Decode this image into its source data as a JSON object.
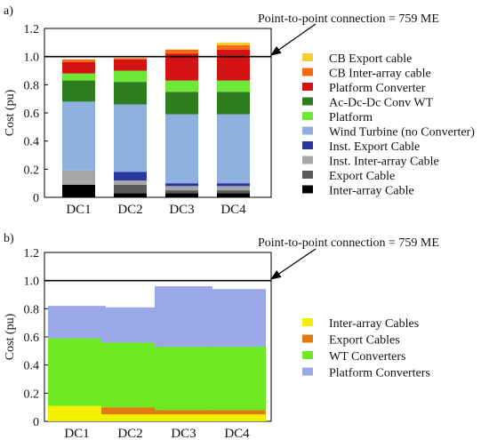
{
  "chart_data": [
    {
      "panel_label": "a)",
      "type": "bar",
      "stacked": true,
      "ylabel": "Cost (pu)",
      "ylim": [
        0,
        1.2
      ],
      "yticks": [
        "0",
        "0.2",
        "0.4",
        "0.6",
        "0.8",
        "1.0",
        "1.2"
      ],
      "categories": [
        "DC1",
        "DC2",
        "DC3",
        "DC4"
      ],
      "reference_line": {
        "value": 1.0,
        "label": "Point-to-point connection = 759 ME"
      },
      "legend_position": "right",
      "series": [
        {
          "name": "Inter-array Cable",
          "color": "#000000",
          "values": [
            0.09,
            0.03,
            0.03,
            0.03
          ]
        },
        {
          "name": "Export Cable",
          "color": "#5a5a5a",
          "values": [
            0.0,
            0.06,
            0.02,
            0.02
          ]
        },
        {
          "name": "Inst. Inter-array Cable",
          "color": "#a6a6a6",
          "values": [
            0.1,
            0.03,
            0.03,
            0.03
          ]
        },
        {
          "name": "Inst. Export Cable",
          "color": "#2b35a0",
          "values": [
            0.0,
            0.06,
            0.02,
            0.02
          ]
        },
        {
          "name": "Wind Turbine (no Converter)",
          "color": "#8fb0df",
          "values": [
            0.49,
            0.48,
            0.49,
            0.49
          ]
        },
        {
          "name": "Platform",
          "color": "#6ee838",
          "values": [
            0.0,
            0.0,
            0.0,
            0.0
          ]
        },
        {
          "name": "Ac-Dc-Dc Conv WT",
          "color": "#2e7d1e",
          "values": [
            0.15,
            0.16,
            0.16,
            0.16
          ]
        },
        {
          "name": "Platform",
          "color": "#6ee838",
          "values": [
            0.05,
            0.08,
            0.08,
            0.08
          ]
        },
        {
          "name": "Platform Converter",
          "color": "#d41414",
          "values": [
            0.08,
            0.08,
            0.19,
            0.22
          ]
        },
        {
          "name": "CB Inter-array cable",
          "color": "#f36a13",
          "values": [
            0.02,
            0.01,
            0.03,
            0.03
          ]
        },
        {
          "name": "CB Export cable",
          "color": "#f7cd33",
          "values": [
            0.0,
            0.0,
            0.0,
            0.02
          ]
        }
      ],
      "legend": [
        {
          "name": "CB Export cable",
          "color": "#f7cd33"
        },
        {
          "name": "CB Inter-array cable",
          "color": "#f36a13"
        },
        {
          "name": "Platform Converter",
          "color": "#d41414"
        },
        {
          "name": "Ac-Dc-Dc Conv WT",
          "color": "#2e7d1e"
        },
        {
          "name": "Platform",
          "color": "#6ee838"
        },
        {
          "name": "Wind Turbine (no Converter)",
          "color": "#8fb0df"
        },
        {
          "name": "Inst. Export Cable",
          "color": "#2b35a0"
        },
        {
          "name": "Inst. Inter-array Cable",
          "color": "#a6a6a6"
        },
        {
          "name": "Export Cable",
          "color": "#5a5a5a"
        },
        {
          "name": "Inter-array Cable",
          "color": "#000000"
        }
      ]
    },
    {
      "panel_label": "b)",
      "type": "bar",
      "stacked": true,
      "ylabel": "Cost (pu)",
      "ylim": [
        0,
        1.2
      ],
      "yticks": [
        "0",
        "0.2",
        "0.4",
        "0.6",
        "0.8",
        "1.0",
        "1.2"
      ],
      "categories": [
        "DC1",
        "DC2",
        "DC3",
        "DC4"
      ],
      "reference_line": {
        "value": 1.0,
        "label": "Point-to-point connection = 759 ME"
      },
      "legend_position": "right",
      "series": [
        {
          "name": "Inter-array Cables",
          "color": "#f0f000",
          "values": [
            0.11,
            0.05,
            0.05,
            0.05
          ]
        },
        {
          "name": "Export Cables",
          "color": "#e07b10",
          "values": [
            0.0,
            0.05,
            0.03,
            0.03
          ]
        },
        {
          "name": "WT Converters",
          "color": "#6ee820",
          "values": [
            0.48,
            0.46,
            0.45,
            0.45
          ]
        },
        {
          "name": "Platform Converters",
          "color": "#9aa8e8",
          "values": [
            0.23,
            0.25,
            0.43,
            0.41
          ]
        }
      ],
      "legend": [
        {
          "name": "Inter-array Cables",
          "color": "#f0f000"
        },
        {
          "name": "Export Cables",
          "color": "#e07b10"
        },
        {
          "name": "WT Converters",
          "color": "#6ee820"
        },
        {
          "name": "Platform Converters",
          "color": "#9aa8e8"
        }
      ]
    }
  ]
}
